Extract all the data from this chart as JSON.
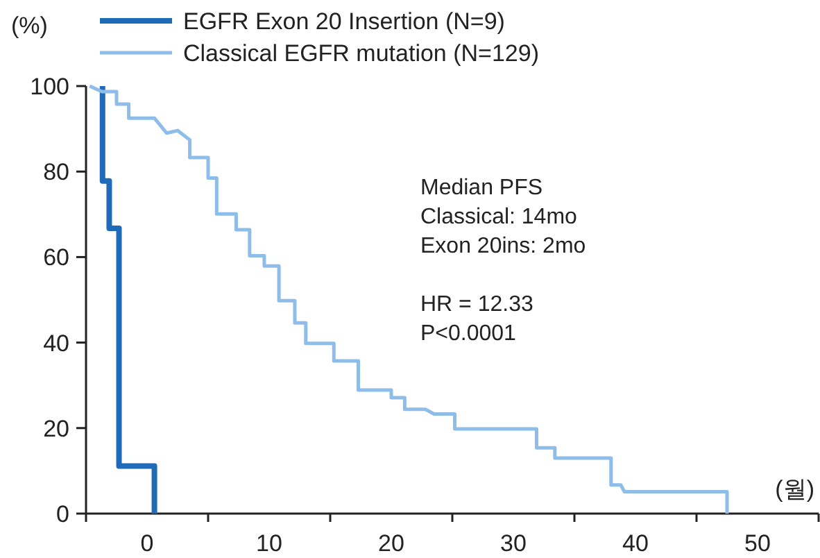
{
  "chart_data": {
    "type": "line",
    "ylabel": "(%)",
    "xlabel": "(월)",
    "xlim": [
      -5,
      55
    ],
    "ylim": [
      0,
      100
    ],
    "xticks": [
      {
        "value": -5,
        "label": null
      },
      0,
      {
        "value": 5,
        "label": null
      },
      10,
      {
        "value": 15,
        "label": null
      },
      20,
      {
        "value": 25,
        "label": null
      },
      30,
      {
        "value": 35,
        "label": null
      },
      40,
      {
        "value": 45,
        "label": null
      },
      50,
      {
        "value": 55,
        "label": null
      }
    ],
    "yticks": [
      0,
      20,
      40,
      60,
      80,
      100
    ],
    "grid": false,
    "legend": "top left",
    "marker": "none",
    "line_style": "solid",
    "series": [
      {
        "name": "EGFR Exon 20 Insertion (N=9)",
        "color": "#1f6bb8",
        "x": [
          -3.65,
          -3.65,
          -3.1,
          -3.1,
          -2.3,
          -2.3,
          0.6,
          0.6
        ],
        "values": [
          100,
          77.8,
          77.8,
          66.7,
          66.7,
          11.1,
          11.1,
          0
        ]
      },
      {
        "name": "Classical EGFR mutation (N=129)",
        "color": "#8dbde8",
        "x": [
          -4.7,
          -3.7,
          -2.5,
          -2.5,
          -1.5,
          -1.5,
          0.6,
          1.6,
          2.5,
          3.5,
          3.5,
          5.0,
          5.0,
          5.7,
          5.7,
          7.3,
          7.3,
          8.4,
          8.4,
          9.6,
          9.6,
          10.8,
          10.8,
          12.1,
          12.1,
          13.0,
          13.0,
          15.3,
          15.3,
          17.3,
          17.3,
          20.0,
          20.0,
          21.1,
          21.1,
          22.8,
          23.5,
          25.2,
          25.2,
          31.9,
          31.9,
          33.4,
          33.4,
          38.0,
          38.0,
          38.8,
          39.1,
          47.5,
          47.5
        ],
        "values": [
          100,
          98.7,
          98.7,
          95.8,
          95.8,
          92.5,
          92.5,
          89.0,
          89.6,
          87.4,
          83.3,
          83.3,
          78.5,
          78.5,
          70.1,
          70.1,
          66.4,
          66.4,
          60.3,
          60.3,
          57.9,
          57.9,
          49.8,
          49.8,
          44.6,
          44.6,
          39.8,
          39.8,
          35.7,
          35.7,
          28.9,
          28.9,
          27.1,
          27.1,
          24.4,
          24.4,
          23.3,
          23.3,
          19.8,
          19.8,
          15.4,
          15.4,
          13.0,
          13.0,
          6.7,
          6.7,
          5.1,
          5.1,
          0
        ]
      }
    ],
    "annotations": [
      "Median PFS\nClassical: 14mo\nExon 20ins: 2mo",
      "HR = 12.33\nP<0.0001"
    ]
  }
}
